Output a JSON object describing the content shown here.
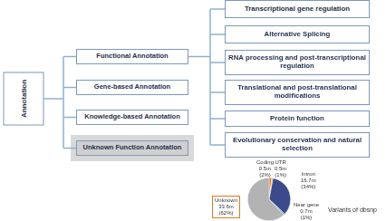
{
  "nodes": {
    "root": "Annotation",
    "level1": [
      "Functional Annotation",
      "Gene-based Annotation",
      "Knowledge-based Annotation",
      "Unknown Function Annotation"
    ],
    "level2": [
      "Transcriptional gene regulation",
      "Alternative Splicing",
      "RNA processing and post-transcriptional regulation",
      "Translational and post-translational modifications",
      "Protein function",
      "Evolutionary conservation and natural selection"
    ]
  },
  "chart_data": {
    "type": "pie",
    "title": "Variants of dbsnp",
    "categories": [
      "Coding",
      "UTR",
      "Intron",
      "Near gene",
      "Unknown"
    ],
    "values": [
      2,
      1,
      34,
      1,
      62
    ],
    "value_labels": [
      "0.5m (2%)",
      "0.5m (1%)",
      "16.7m (34%)",
      "0.7m (1%)",
      "33.6m (62%)"
    ],
    "colors": [
      "#e07020",
      "#f0a848",
      "#3b4a8a",
      "#4a9aa0",
      "#b3b3b3"
    ],
    "data_labels": true
  }
}
